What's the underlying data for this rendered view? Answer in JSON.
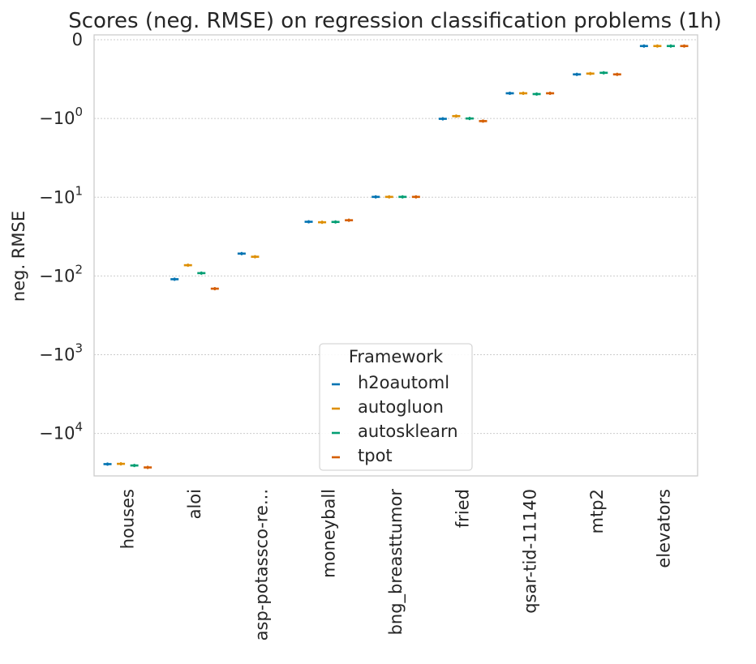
{
  "chart_data": {
    "type": "scatter",
    "title": "Scores (neg. RMSE) on  regression classification problems (1h)",
    "xlabel": "",
    "ylabel": "neg. RMSE",
    "yscale": "symlog",
    "ylim": [
      -30000,
      0
    ],
    "yticks": [
      {
        "value": 0,
        "base": "0",
        "exp": ""
      },
      {
        "value": -1,
        "base": "−10",
        "exp": "0"
      },
      {
        "value": -10,
        "base": "−10",
        "exp": "1"
      },
      {
        "value": -100,
        "base": "−10",
        "exp": "2"
      },
      {
        "value": -1000,
        "base": "−10",
        "exp": "3"
      },
      {
        "value": -10000,
        "base": "−10",
        "exp": "4"
      }
    ],
    "grid": "y-dotted",
    "categories": [
      "houses",
      "aloi",
      "asp-potassco-re...",
      "moneyball",
      "bng_breasttumor",
      "fried",
      "qsar-tid-11140",
      "mtp2",
      "elevators"
    ],
    "series": [
      {
        "name": "h2oautoml",
        "color": "#0173b2",
        "values": [
          -24500,
          -110,
          -52,
          -20.5,
          -9.9,
          -1.01,
          -0.68,
          -0.44,
          -0.08
        ]
      },
      {
        "name": "autogluon",
        "color": "#de8f05",
        "values": [
          -24300,
          -73,
          -57,
          -20.8,
          -9.9,
          -0.97,
          -0.68,
          -0.43,
          -0.08
        ]
      },
      {
        "name": "autosklearn",
        "color": "#029e73",
        "values": [
          -25500,
          -92,
          null,
          -20.6,
          -9.9,
          -1.0,
          -0.69,
          -0.42,
          -0.08
        ]
      },
      {
        "name": "tpot",
        "color": "#d55e00",
        "values": [
          -27000,
          -145,
          null,
          -19.6,
          -9.9,
          -1.08,
          -0.68,
          -0.44,
          -0.08
        ]
      }
    ],
    "legend": {
      "title": "Framework",
      "position": "lower-center"
    }
  }
}
